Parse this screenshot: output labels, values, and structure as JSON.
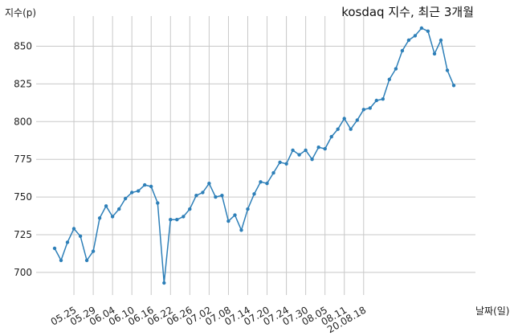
{
  "chart_data": {
    "type": "line",
    "title": "kosdaq 지수, 최근 3개월",
    "xlabel": "날짜(일)",
    "ylabel": "지수(p)",
    "grid": true,
    "ylim": [
      685,
      870
    ],
    "yticks": [
      700,
      725,
      750,
      775,
      800,
      825,
      850
    ],
    "xtick_labels": [
      "05.25",
      "05.29",
      "06.04",
      "06.10",
      "06.16",
      "06.22",
      "06.26",
      "07.02",
      "07.08",
      "07.14",
      "07.20",
      "07.24",
      "07.30",
      "08.05",
      "08.11",
      "20.08.18"
    ],
    "xtick_index": [
      3,
      6,
      9,
      12,
      15,
      18,
      21,
      24,
      27,
      30,
      33,
      36,
      39,
      42,
      45,
      48
    ],
    "series": [
      {
        "color": "#2d7fb8",
        "values": [
          716,
          708,
          720,
          729,
          724,
          708,
          714,
          736,
          744,
          737,
          742,
          749,
          753,
          754,
          758,
          757,
          746,
          693,
          735,
          735,
          737,
          742,
          751,
          753,
          759,
          750,
          751,
          734,
          738,
          728,
          742,
          752,
          760,
          759,
          766,
          773,
          772,
          781,
          778,
          781,
          775,
          783,
          782,
          790,
          795,
          802,
          795,
          801,
          808,
          809,
          814,
          815,
          828,
          835,
          847,
          854,
          857,
          862,
          860,
          845,
          854,
          834,
          824
        ]
      }
    ]
  }
}
